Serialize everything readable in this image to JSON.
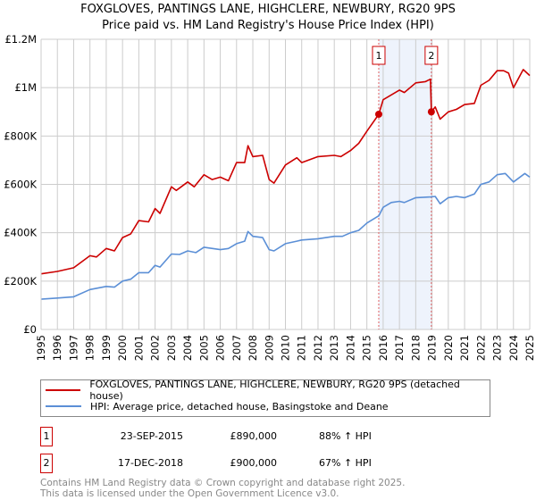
{
  "chart_data": {
    "type": "line",
    "title": "FOXGLOVES, PANTINGS LANE, HIGHCLERE, NEWBURY, RG20 9PS",
    "subtitle": "Price paid vs. HM Land Registry's House Price Index (HPI)",
    "xlim": [
      1995,
      2025
    ],
    "ylim": [
      0,
      1200000
    ],
    "x_ticks": [
      "1995",
      "1996",
      "1997",
      "1998",
      "1999",
      "2000",
      "2001",
      "2002",
      "2003",
      "2004",
      "2005",
      "2006",
      "2007",
      "2008",
      "2009",
      "2010",
      "2011",
      "2012",
      "2013",
      "2014",
      "2015",
      "2016",
      "2017",
      "2018",
      "2019",
      "2020",
      "2021",
      "2022",
      "2023",
      "2024",
      "2025"
    ],
    "y_ticks": [
      {
        "v": 0,
        "label": "£0"
      },
      {
        "v": 200000,
        "label": "£200K"
      },
      {
        "v": 400000,
        "label": "£400K"
      },
      {
        "v": 600000,
        "label": "£600K"
      },
      {
        "v": 800000,
        "label": "£800K"
      },
      {
        "v": 1000000,
        "label": "£1M"
      },
      {
        "v": 1200000,
        "label": "£1.2M"
      }
    ],
    "grid": true,
    "series": [
      {
        "name": "FOXGLOVES, PANTINGS LANE, HIGHCLERE, NEWBURY, RG20 9PS (detached house)",
        "color": "#cc0000",
        "x": [
          1995,
          1996,
          1997,
          1998,
          1998.4,
          1999,
          1999.5,
          2000,
          2000.5,
          2001,
          2001.6,
          2002,
          2002.3,
          2003,
          2003.3,
          2004,
          2004.4,
          2005,
          2005.5,
          2006,
          2006.5,
          2007,
          2007.5,
          2007.7,
          2008,
          2008.6,
          2009,
          2009.3,
          2010,
          2010.7,
          2011,
          2012,
          2013,
          2013.4,
          2014,
          2014.5,
          2015,
          2015.73,
          2016,
          2016.5,
          2017,
          2017.3,
          2018,
          2018.6,
          2018.9,
          2018.96,
          2019.2,
          2019.5,
          2020,
          2020.5,
          2021,
          2021.6,
          2022,
          2022.5,
          2023,
          2023.4,
          2023.7,
          2024,
          2024.6,
          2025
        ],
        "values": [
          230000,
          240000,
          255000,
          305000,
          300000,
          335000,
          325000,
          380000,
          395000,
          450000,
          445000,
          500000,
          480000,
          590000,
          575000,
          610000,
          590000,
          640000,
          620000,
          630000,
          615000,
          690000,
          690000,
          760000,
          715000,
          720000,
          620000,
          605000,
          680000,
          710000,
          690000,
          715000,
          720000,
          715000,
          740000,
          770000,
          820000,
          890000,
          950000,
          970000,
          990000,
          980000,
          1020000,
          1025000,
          1035000,
          900000,
          920000,
          870000,
          900000,
          910000,
          930000,
          935000,
          1010000,
          1030000,
          1070000,
          1070000,
          1060000,
          1000000,
          1075000,
          1050000
        ]
      },
      {
        "name": "HPI: Average price, detached house, Basingstoke and Deane",
        "color": "#5b8fd6",
        "x": [
          1995,
          1996,
          1997,
          1998,
          1999,
          1999.5,
          2000,
          2000.5,
          2001,
          2001.6,
          2002,
          2002.3,
          2003,
          2003.5,
          2004,
          2004.5,
          2005,
          2006,
          2006.5,
          2007,
          2007.5,
          2007.7,
          2008,
          2008.6,
          2009,
          2009.3,
          2010,
          2010.7,
          2011,
          2012,
          2013,
          2013.5,
          2014,
          2014.5,
          2015,
          2015.73,
          2016,
          2016.5,
          2017,
          2017.3,
          2018,
          2018.9,
          2019.2,
          2019.5,
          2020,
          2020.5,
          2021,
          2021.6,
          2022,
          2022.5,
          2023,
          2023.5,
          2024,
          2024.7,
          2025
        ],
        "values": [
          125000,
          130000,
          135000,
          165000,
          178000,
          175000,
          200000,
          208000,
          235000,
          235000,
          265000,
          258000,
          312000,
          310000,
          325000,
          318000,
          340000,
          330000,
          335000,
          355000,
          365000,
          405000,
          385000,
          380000,
          330000,
          325000,
          355000,
          365000,
          370000,
          375000,
          385000,
          385000,
          400000,
          410000,
          440000,
          470000,
          505000,
          525000,
          530000,
          525000,
          545000,
          548000,
          550000,
          520000,
          545000,
          550000,
          545000,
          560000,
          600000,
          610000,
          640000,
          645000,
          610000,
          645000,
          630000
        ]
      }
    ],
    "sales": [
      {
        "num": "1",
        "x": 2015.73,
        "value": 890000
      },
      {
        "num": "2",
        "x": 2018.96,
        "value": 900000
      }
    ],
    "shaded_range": [
      2015.73,
      2018.96
    ]
  },
  "legend": {
    "red_label": "FOXGLOVES, PANTINGS LANE, HIGHCLERE, NEWBURY, RG20 9PS (detached house)",
    "blue_label": "HPI: Average price, detached house, Basingstoke and Deane"
  },
  "sales_table": [
    {
      "num": "1",
      "date": "23-SEP-2015",
      "price": "£890,000",
      "hpi": "88% ↑ HPI"
    },
    {
      "num": "2",
      "date": "17-DEC-2018",
      "price": "£900,000",
      "hpi": "67% ↑ HPI"
    }
  ],
  "footer": {
    "line1": "Contains HM Land Registry data © Crown copyright and database right 2025.",
    "line2": "This data is licensed under the Open Government Licence v3.0."
  }
}
